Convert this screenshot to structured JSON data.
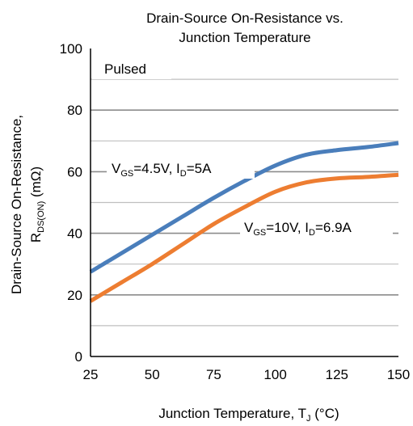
{
  "chart_data": {
    "type": "line",
    "title_line1": "Drain-Source On-Resistance vs.",
    "title_line2": "Junction Temperature",
    "xlabel": {
      "main": "Junction Temperature, T",
      "sub": "J",
      "suffix": " (°C)"
    },
    "ylabel": {
      "line1": "Drain-Source On-Resistance,",
      "line2_main": "R",
      "line2_sub": "DS(ON)",
      "line2_suffix": " (mΩ)"
    },
    "xlim": [
      25,
      150
    ],
    "ylim": [
      0,
      100
    ],
    "x_ticks": [
      "25",
      "50",
      "75",
      "100",
      "125",
      "150"
    ],
    "y_ticks": [
      "0",
      "20",
      "40",
      "60",
      "80",
      "100"
    ],
    "grid": true,
    "annotation": "Pulsed",
    "series": [
      {
        "label_parts": [
          {
            "t": "V",
            "sub": false
          },
          {
            "t": "GS",
            "sub": true
          },
          {
            "t": "=4.5V, I",
            "sub": false
          },
          {
            "t": "D",
            "sub": true
          },
          {
            "t": "=5A",
            "sub": false
          }
        ],
        "color": "#4a7ebb",
        "x": [
          25,
          37.5,
          50,
          62.5,
          75,
          87.5,
          100,
          112.5,
          125,
          137.5,
          150
        ],
        "y": [
          27.5,
          33.5,
          39.5,
          45.5,
          51.5,
          57,
          62,
          65.5,
          67,
          68,
          69.3
        ]
      },
      {
        "label_parts": [
          {
            "t": "V",
            "sub": false
          },
          {
            "t": "GS",
            "sub": true
          },
          {
            "t": "=10V, I",
            "sub": false
          },
          {
            "t": "D",
            "sub": true
          },
          {
            "t": "=6.9A",
            "sub": false
          }
        ],
        "color": "#ed7d31",
        "x": [
          25,
          37.5,
          50,
          62.5,
          75,
          87.5,
          100,
          112.5,
          125,
          137.5,
          150
        ],
        "y": [
          18,
          24,
          30,
          36.5,
          43,
          48.5,
          53.5,
          56.5,
          57.8,
          58.3,
          59
        ]
      }
    ]
  }
}
